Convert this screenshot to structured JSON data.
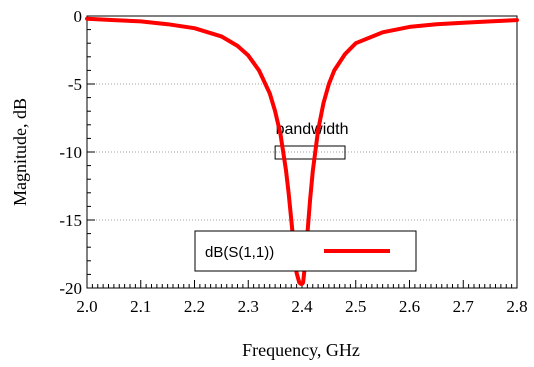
{
  "chart_data": {
    "type": "line",
    "title": "",
    "xlabel": "Frequency, GHz",
    "ylabel": "Magnitude, dB",
    "xlim": [
      2.0,
      2.8
    ],
    "ylim": [
      -20,
      0
    ],
    "x_ticks": [
      "2.0",
      "2.1",
      "2.2",
      "2.3",
      "2.4",
      "2.5",
      "2.6",
      "2.7",
      "2.8"
    ],
    "y_ticks": [
      "0",
      "-5",
      "-10",
      "-15",
      "-20"
    ],
    "grid": "horizontal dotted",
    "series": [
      {
        "name": "dB(S(1,1))",
        "color": "#ff0000",
        "x": [
          2.0,
          2.05,
          2.1,
          2.15,
          2.2,
          2.25,
          2.28,
          2.3,
          2.32,
          2.34,
          2.35,
          2.36,
          2.37,
          2.375,
          2.38,
          2.385,
          2.39,
          2.395,
          2.398,
          2.4,
          2.402,
          2.405,
          2.41,
          2.415,
          2.42,
          2.43,
          2.44,
          2.45,
          2.46,
          2.48,
          2.5,
          2.55,
          2.6,
          2.65,
          2.7,
          2.75,
          2.8
        ],
        "y": [
          -0.2,
          -0.3,
          -0.4,
          -0.6,
          -0.9,
          -1.5,
          -2.2,
          -2.9,
          -4.0,
          -5.7,
          -7.0,
          -8.7,
          -11.3,
          -13.0,
          -15.0,
          -17.0,
          -18.9,
          -19.6,
          -19.7,
          -19.7,
          -19.6,
          -18.5,
          -16.0,
          -13.5,
          -11.4,
          -8.4,
          -6.4,
          -5.0,
          -4.0,
          -2.8,
          -2.0,
          -1.2,
          -0.8,
          -0.6,
          -0.5,
          -0.4,
          -0.3
        ]
      }
    ],
    "annotations": [
      {
        "text": "bandwidth",
        "x_range": [
          2.35,
          2.48
        ],
        "y": -10
      }
    ],
    "legend": {
      "position": "bottom-center",
      "entries": [
        "dB(S(1,1))"
      ]
    }
  }
}
